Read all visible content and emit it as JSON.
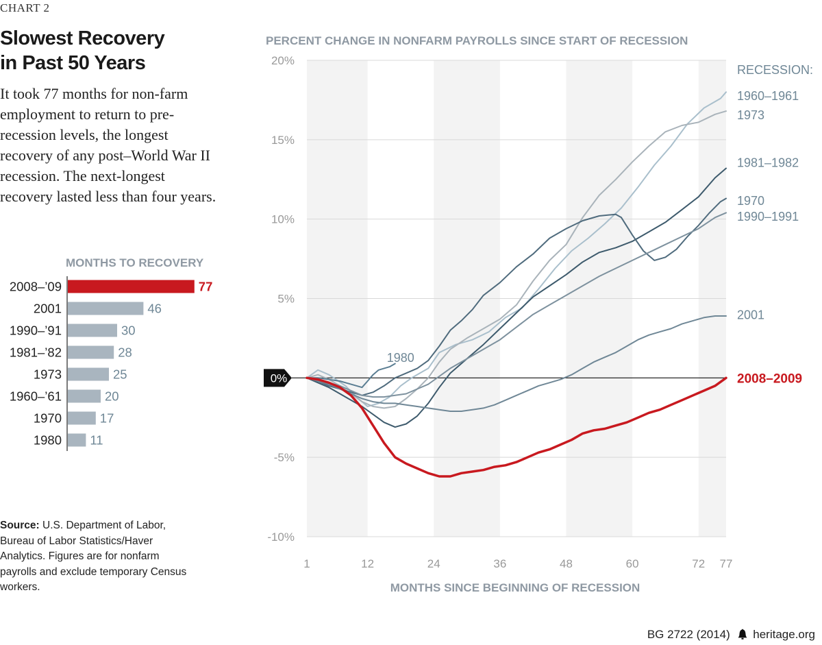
{
  "header": {
    "chart_label": "CHART 2",
    "headline_line1": "Slowest Recovery",
    "headline_line2": "in Past 50 Years",
    "description": "It took 77 months for non-farm employment to return to pre-recession levels, the longest recovery of any post–World War II recession. The next-longest recovery lasted less than four years."
  },
  "source": {
    "label": "Source:",
    "text": "U.S. Department of Labor, Bureau of Labor Statistics/Haver Analytics. Figures are for nonfarm payrolls and exclude temporary Census workers."
  },
  "footer": {
    "id": "BG 2722 (2014)",
    "site": "heritage.org"
  },
  "colors": {
    "highlight": "#c8191f",
    "bar": "#a9b5bf",
    "gray_title": "#8f99a3",
    "band": "#f3f3f3"
  },
  "chart_data": [
    {
      "type": "bar",
      "orientation": "horizontal",
      "title": "MONTHS TO RECOVERY",
      "categories": [
        "2008–’09",
        "2001",
        "1990–’91",
        "1981–’82",
        "1973",
        "1960–’61",
        "1970",
        "1980"
      ],
      "values": [
        77,
        46,
        30,
        28,
        25,
        20,
        17,
        11
      ],
      "highlight_index": 0
    },
    {
      "type": "line",
      "title": "PERCENT CHANGE IN NONFARM PAYROLLS SINCE START OF RECESSION",
      "xlabel": "MONTHS SINCE BEGINNING OF RECESSION",
      "ylabel": "",
      "xlim": [
        1,
        77
      ],
      "ylim": [
        -10,
        20
      ],
      "x_ticks": [
        1,
        12,
        24,
        36,
        48,
        60,
        72,
        77
      ],
      "y_ticks": [
        {
          "value": 20,
          "label": "20%"
        },
        {
          "value": 15,
          "label": "15%"
        },
        {
          "value": 10,
          "label": "10%"
        },
        {
          "value": 5,
          "label": "5%"
        },
        {
          "value": -5,
          "label": "-5%"
        },
        {
          "value": -10,
          "label": "-10%"
        }
      ],
      "zero_label": "0%",
      "legend_title": "RECESSION:",
      "legend_placement": "right",
      "shaded_bands": [
        [
          1,
          12
        ],
        [
          24,
          36
        ],
        [
          48,
          60
        ],
        [
          72,
          77
        ]
      ],
      "series": [
        {
          "name": "1960–1961",
          "color": "#a9bfcc",
          "width": 2,
          "label_y": 17.8,
          "points": [
            [
              1,
              0
            ],
            [
              3,
              0.5
            ],
            [
              5,
              0.2
            ],
            [
              8,
              -0.5
            ],
            [
              10,
              -1.2
            ],
            [
              12,
              -1.8
            ],
            [
              14,
              -1.6
            ],
            [
              16,
              -1.2
            ],
            [
              18,
              -0.5
            ],
            [
              20,
              0
            ],
            [
              23,
              0.6
            ],
            [
              25,
              1.6
            ],
            [
              28,
              2.1
            ],
            [
              31,
              2.4
            ],
            [
              34,
              2.9
            ],
            [
              37,
              3.8
            ],
            [
              40,
              4.4
            ],
            [
              43,
              5.6
            ],
            [
              46,
              6.9
            ],
            [
              49,
              8.0
            ],
            [
              52,
              8.8
            ],
            [
              55,
              9.7
            ],
            [
              58,
              10.7
            ],
            [
              61,
              12.0
            ],
            [
              64,
              13.4
            ],
            [
              67,
              14.6
            ],
            [
              70,
              16.0
            ],
            [
              73,
              17.0
            ],
            [
              76,
              17.6
            ],
            [
              77,
              18.0
            ]
          ]
        },
        {
          "name": "1973",
          "color": "#a9b3ba",
          "width": 2,
          "label_y": 16.6,
          "points": [
            [
              1,
              0
            ],
            [
              3,
              0.2
            ],
            [
              5,
              -0.1
            ],
            [
              7,
              -0.5
            ],
            [
              9,
              -1.0
            ],
            [
              11,
              -1.5
            ],
            [
              13,
              -1.8
            ],
            [
              15,
              -1.9
            ],
            [
              17,
              -1.8
            ],
            [
              19,
              -1.3
            ],
            [
              21,
              -0.7
            ],
            [
              23,
              0
            ],
            [
              25,
              1.0
            ],
            [
              27,
              1.8
            ],
            [
              30,
              2.5
            ],
            [
              33,
              3.1
            ],
            [
              36,
              3.7
            ],
            [
              39,
              4.6
            ],
            [
              42,
              6.1
            ],
            [
              45,
              7.4
            ],
            [
              48,
              8.4
            ],
            [
              51,
              10.1
            ],
            [
              54,
              11.5
            ],
            [
              57,
              12.5
            ],
            [
              60,
              13.6
            ],
            [
              63,
              14.6
            ],
            [
              66,
              15.5
            ],
            [
              69,
              15.9
            ],
            [
              72,
              16.1
            ],
            [
              75,
              16.6
            ],
            [
              77,
              16.8
            ]
          ]
        },
        {
          "name": "1981–1982",
          "color": "#3d5a6c",
          "width": 2,
          "label_y": 13.6,
          "points": [
            [
              1,
              0
            ],
            [
              3,
              -0.3
            ],
            [
              5,
              -0.6
            ],
            [
              7,
              -1.0
            ],
            [
              9,
              -1.4
            ],
            [
              11,
              -1.8
            ],
            [
              13,
              -2.3
            ],
            [
              15,
              -2.8
            ],
            [
              17,
              -3.1
            ],
            [
              19,
              -2.9
            ],
            [
              21,
              -2.4
            ],
            [
              23,
              -1.6
            ],
            [
              25,
              -0.6
            ],
            [
              27,
              0.3
            ],
            [
              30,
              1.2
            ],
            [
              33,
              2.1
            ],
            [
              36,
              3.1
            ],
            [
              39,
              4.1
            ],
            [
              42,
              5.1
            ],
            [
              45,
              5.8
            ],
            [
              48,
              6.5
            ],
            [
              51,
              7.3
            ],
            [
              54,
              7.9
            ],
            [
              57,
              8.2
            ],
            [
              60,
              8.6
            ],
            [
              63,
              9.2
            ],
            [
              66,
              9.8
            ],
            [
              69,
              10.6
            ],
            [
              72,
              11.4
            ],
            [
              75,
              12.6
            ],
            [
              77,
              13.2
            ]
          ]
        },
        {
          "name": "1970",
          "color": "#4f6b7d",
          "width": 2,
          "label_y": 11.2,
          "points": [
            [
              1,
              0
            ],
            [
              3,
              -0.2
            ],
            [
              5,
              -0.5
            ],
            [
              7,
              -0.7
            ],
            [
              9,
              -0.9
            ],
            [
              11,
              -1.1
            ],
            [
              13,
              -0.9
            ],
            [
              15,
              -0.5
            ],
            [
              17,
              0
            ],
            [
              19,
              0.3
            ],
            [
              21,
              0.6
            ],
            [
              23,
              1.1
            ],
            [
              25,
              2.0
            ],
            [
              27,
              3.0
            ],
            [
              29,
              3.6
            ],
            [
              31,
              4.3
            ],
            [
              33,
              5.2
            ],
            [
              36,
              6.0
            ],
            [
              39,
              7.0
            ],
            [
              42,
              7.8
            ],
            [
              45,
              8.8
            ],
            [
              48,
              9.4
            ],
            [
              51,
              9.9
            ],
            [
              54,
              10.2
            ],
            [
              57,
              10.3
            ],
            [
              58,
              10.1
            ],
            [
              60,
              9.0
            ],
            [
              62,
              8.0
            ],
            [
              64,
              7.4
            ],
            [
              66,
              7.6
            ],
            [
              68,
              8.1
            ],
            [
              70,
              8.9
            ],
            [
              72,
              9.6
            ],
            [
              74,
              10.4
            ],
            [
              76,
              11.1
            ],
            [
              77,
              11.3
            ]
          ]
        },
        {
          "name": "1990–1991",
          "color": "#7d919e",
          "width": 2,
          "label_y": 10.2,
          "points": [
            [
              1,
              0
            ],
            [
              3,
              -0.1
            ],
            [
              5,
              -0.3
            ],
            [
              7,
              -0.5
            ],
            [
              9,
              -0.8
            ],
            [
              11,
              -1.1
            ],
            [
              13,
              -1.2
            ],
            [
              15,
              -1.2
            ],
            [
              17,
              -1.1
            ],
            [
              19,
              -1.0
            ],
            [
              21,
              -0.7
            ],
            [
              23,
              -0.4
            ],
            [
              25,
              0.1
            ],
            [
              27,
              0.6
            ],
            [
              30,
              1.2
            ],
            [
              33,
              1.8
            ],
            [
              36,
              2.4
            ],
            [
              39,
              3.2
            ],
            [
              42,
              4.0
            ],
            [
              45,
              4.6
            ],
            [
              48,
              5.2
            ],
            [
              51,
              5.8
            ],
            [
              54,
              6.4
            ],
            [
              57,
              6.9
            ],
            [
              60,
              7.4
            ],
            [
              63,
              7.9
            ],
            [
              66,
              8.4
            ],
            [
              69,
              8.9
            ],
            [
              72,
              9.4
            ],
            [
              75,
              10.1
            ],
            [
              77,
              10.4
            ]
          ]
        },
        {
          "name": "2001",
          "color": "#6f8796",
          "width": 2,
          "label_y": 4.0,
          "points": [
            [
              1,
              0
            ],
            [
              3,
              -0.2
            ],
            [
              5,
              -0.4
            ],
            [
              7,
              -0.7
            ],
            [
              9,
              -1.0
            ],
            [
              11,
              -1.3
            ],
            [
              13,
              -1.5
            ],
            [
              15,
              -1.6
            ],
            [
              17,
              -1.6
            ],
            [
              19,
              -1.7
            ],
            [
              21,
              -1.8
            ],
            [
              23,
              -1.9
            ],
            [
              25,
              -2.0
            ],
            [
              27,
              -2.1
            ],
            [
              29,
              -2.1
            ],
            [
              31,
              -2.0
            ],
            [
              33,
              -1.9
            ],
            [
              35,
              -1.7
            ],
            [
              37,
              -1.4
            ],
            [
              39,
              -1.1
            ],
            [
              41,
              -0.8
            ],
            [
              43,
              -0.5
            ],
            [
              45,
              -0.3
            ],
            [
              47,
              -0.1
            ],
            [
              49,
              0.2
            ],
            [
              51,
              0.6
            ],
            [
              53,
              1.0
            ],
            [
              55,
              1.3
            ],
            [
              57,
              1.6
            ],
            [
              59,
              2.0
            ],
            [
              61,
              2.4
            ],
            [
              63,
              2.7
            ],
            [
              65,
              2.9
            ],
            [
              67,
              3.1
            ],
            [
              69,
              3.4
            ],
            [
              71,
              3.6
            ],
            [
              73,
              3.8
            ],
            [
              75,
              3.9
            ],
            [
              77,
              3.9
            ]
          ]
        },
        {
          "name": "1980",
          "color": "#5a7d92",
          "width": 2,
          "label_y": 1.3,
          "label_x": 15.5,
          "points": [
            [
              1,
              0
            ],
            [
              3,
              0
            ],
            [
              5,
              -0.1
            ],
            [
              7,
              -0.2
            ],
            [
              9,
              -0.4
            ],
            [
              11,
              -0.6
            ],
            [
              12,
              -0.2
            ],
            [
              13,
              0.2
            ],
            [
              14,
              0.5
            ],
            [
              15,
              0.6
            ],
            [
              16,
              0.7
            ],
            [
              17,
              0.9
            ]
          ]
        },
        {
          "name": "2008–2009",
          "color": "#c8191f",
          "width": 3.5,
          "label_y": 0,
          "points": [
            [
              1,
              0
            ],
            [
              3,
              -0.1
            ],
            [
              5,
              -0.3
            ],
            [
              7,
              -0.6
            ],
            [
              9,
              -1.1
            ],
            [
              11,
              -1.9
            ],
            [
              13,
              -3.0
            ],
            [
              15,
              -4.1
            ],
            [
              17,
              -5.0
            ],
            [
              19,
              -5.4
            ],
            [
              21,
              -5.7
            ],
            [
              23,
              -6.0
            ],
            [
              25,
              -6.2
            ],
            [
              27,
              -6.2
            ],
            [
              29,
              -6.0
            ],
            [
              31,
              -5.9
            ],
            [
              33,
              -5.8
            ],
            [
              35,
              -5.6
            ],
            [
              37,
              -5.5
            ],
            [
              39,
              -5.3
            ],
            [
              41,
              -5.0
            ],
            [
              43,
              -4.7
            ],
            [
              45,
              -4.5
            ],
            [
              47,
              -4.2
            ],
            [
              49,
              -3.9
            ],
            [
              51,
              -3.5
            ],
            [
              53,
              -3.3
            ],
            [
              55,
              -3.2
            ],
            [
              57,
              -3.0
            ],
            [
              59,
              -2.8
            ],
            [
              61,
              -2.5
            ],
            [
              63,
              -2.2
            ],
            [
              65,
              -2.0
            ],
            [
              67,
              -1.7
            ],
            [
              69,
              -1.4
            ],
            [
              71,
              -1.1
            ],
            [
              73,
              -0.8
            ],
            [
              75,
              -0.5
            ],
            [
              77,
              0
            ]
          ]
        }
      ]
    }
  ]
}
